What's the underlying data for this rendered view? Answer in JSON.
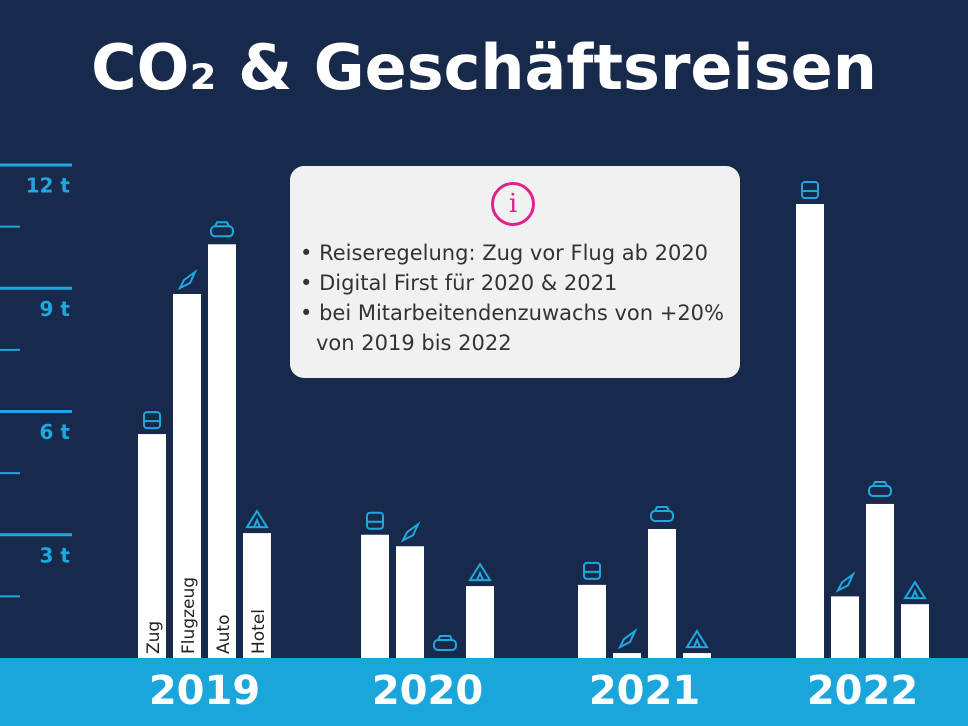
{
  "chart_data": {
    "type": "grouped-bar",
    "title": "CO₂ & Geschäftsreisen",
    "categories": [
      "2019",
      "2020",
      "2021",
      "2022"
    ],
    "series": [
      {
        "name": "Zug",
        "color": "#ffffff",
        "values": [
          5.45,
          3.0,
          1.78,
          11.05
        ]
      },
      {
        "name": "Flugzeug",
        "color": "#ffffff",
        "values": [
          8.86,
          2.72,
          0.12,
          1.5
        ]
      },
      {
        "name": "Auto",
        "color": "#ffffff",
        "values": [
          10.07,
          0,
          3.14,
          3.75
        ]
      },
      {
        "name": "Hotel",
        "color": "#ffffff",
        "values": [
          3.04,
          1.75,
          0.12,
          1.31
        ]
      }
    ],
    "ylim": [
      0,
      12
    ],
    "yticks": [
      {
        "value": 3,
        "label": "3 t"
      },
      {
        "value": 6,
        "label": "6 t"
      },
      {
        "value": 9,
        "label": "9 t"
      },
      {
        "value": 12,
        "label": "12 t"
      }
    ],
    "minor_yticks": [
      1.5,
      4.5,
      7.5,
      10.5
    ],
    "info_box": [
      "Reiseregelung: Zug vor Flug ab 2020",
      "Digital First für 2020 & 2021",
      "bei Mitarbeitendenzuwachs von +20% von 2019 bis 2022"
    ]
  }
}
